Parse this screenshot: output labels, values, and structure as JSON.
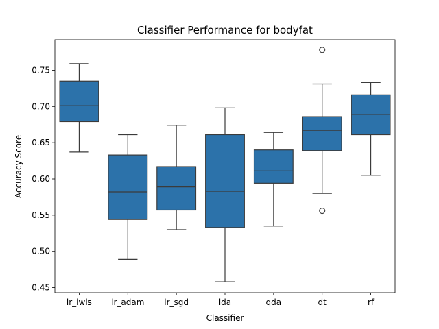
{
  "chart_data": {
    "type": "box",
    "title": "Classifier Performance for bodyfat",
    "xlabel": "Classifier",
    "ylabel": "Accuracy Score",
    "ylim": [
      0.443,
      0.792
    ],
    "yticks": [
      "0.45",
      "0.50",
      "0.55",
      "0.60",
      "0.65",
      "0.70",
      "0.75"
    ],
    "categories": [
      "lr_iwls",
      "lr_adam",
      "lr_sgd",
      "lda",
      "qda",
      "dt",
      "rf"
    ],
    "box_color": "#2c72aa",
    "line_color": "#3b3b3b",
    "boxes": [
      {
        "name": "lr_iwls",
        "whisker_low": 0.637,
        "q1": 0.679,
        "median": 0.701,
        "q3": 0.735,
        "whisker_high": 0.759,
        "outliers": []
      },
      {
        "name": "lr_adam",
        "whisker_low": 0.489,
        "q1": 0.544,
        "median": 0.582,
        "q3": 0.633,
        "whisker_high": 0.661,
        "outliers": []
      },
      {
        "name": "lr_sgd",
        "whisker_low": 0.53,
        "q1": 0.557,
        "median": 0.589,
        "q3": 0.617,
        "whisker_high": 0.674,
        "outliers": []
      },
      {
        "name": "lda",
        "whisker_low": 0.458,
        "q1": 0.533,
        "median": 0.583,
        "q3": 0.661,
        "whisker_high": 0.698,
        "outliers": []
      },
      {
        "name": "qda",
        "whisker_low": 0.535,
        "q1": 0.594,
        "median": 0.611,
        "q3": 0.64,
        "whisker_high": 0.664,
        "outliers": []
      },
      {
        "name": "dt",
        "whisker_low": 0.58,
        "q1": 0.639,
        "median": 0.667,
        "q3": 0.686,
        "whisker_high": 0.731,
        "outliers": [
          0.556,
          0.778
        ]
      },
      {
        "name": "rf",
        "whisker_low": 0.605,
        "q1": 0.661,
        "median": 0.689,
        "q3": 0.716,
        "whisker_high": 0.733,
        "outliers": []
      }
    ]
  }
}
